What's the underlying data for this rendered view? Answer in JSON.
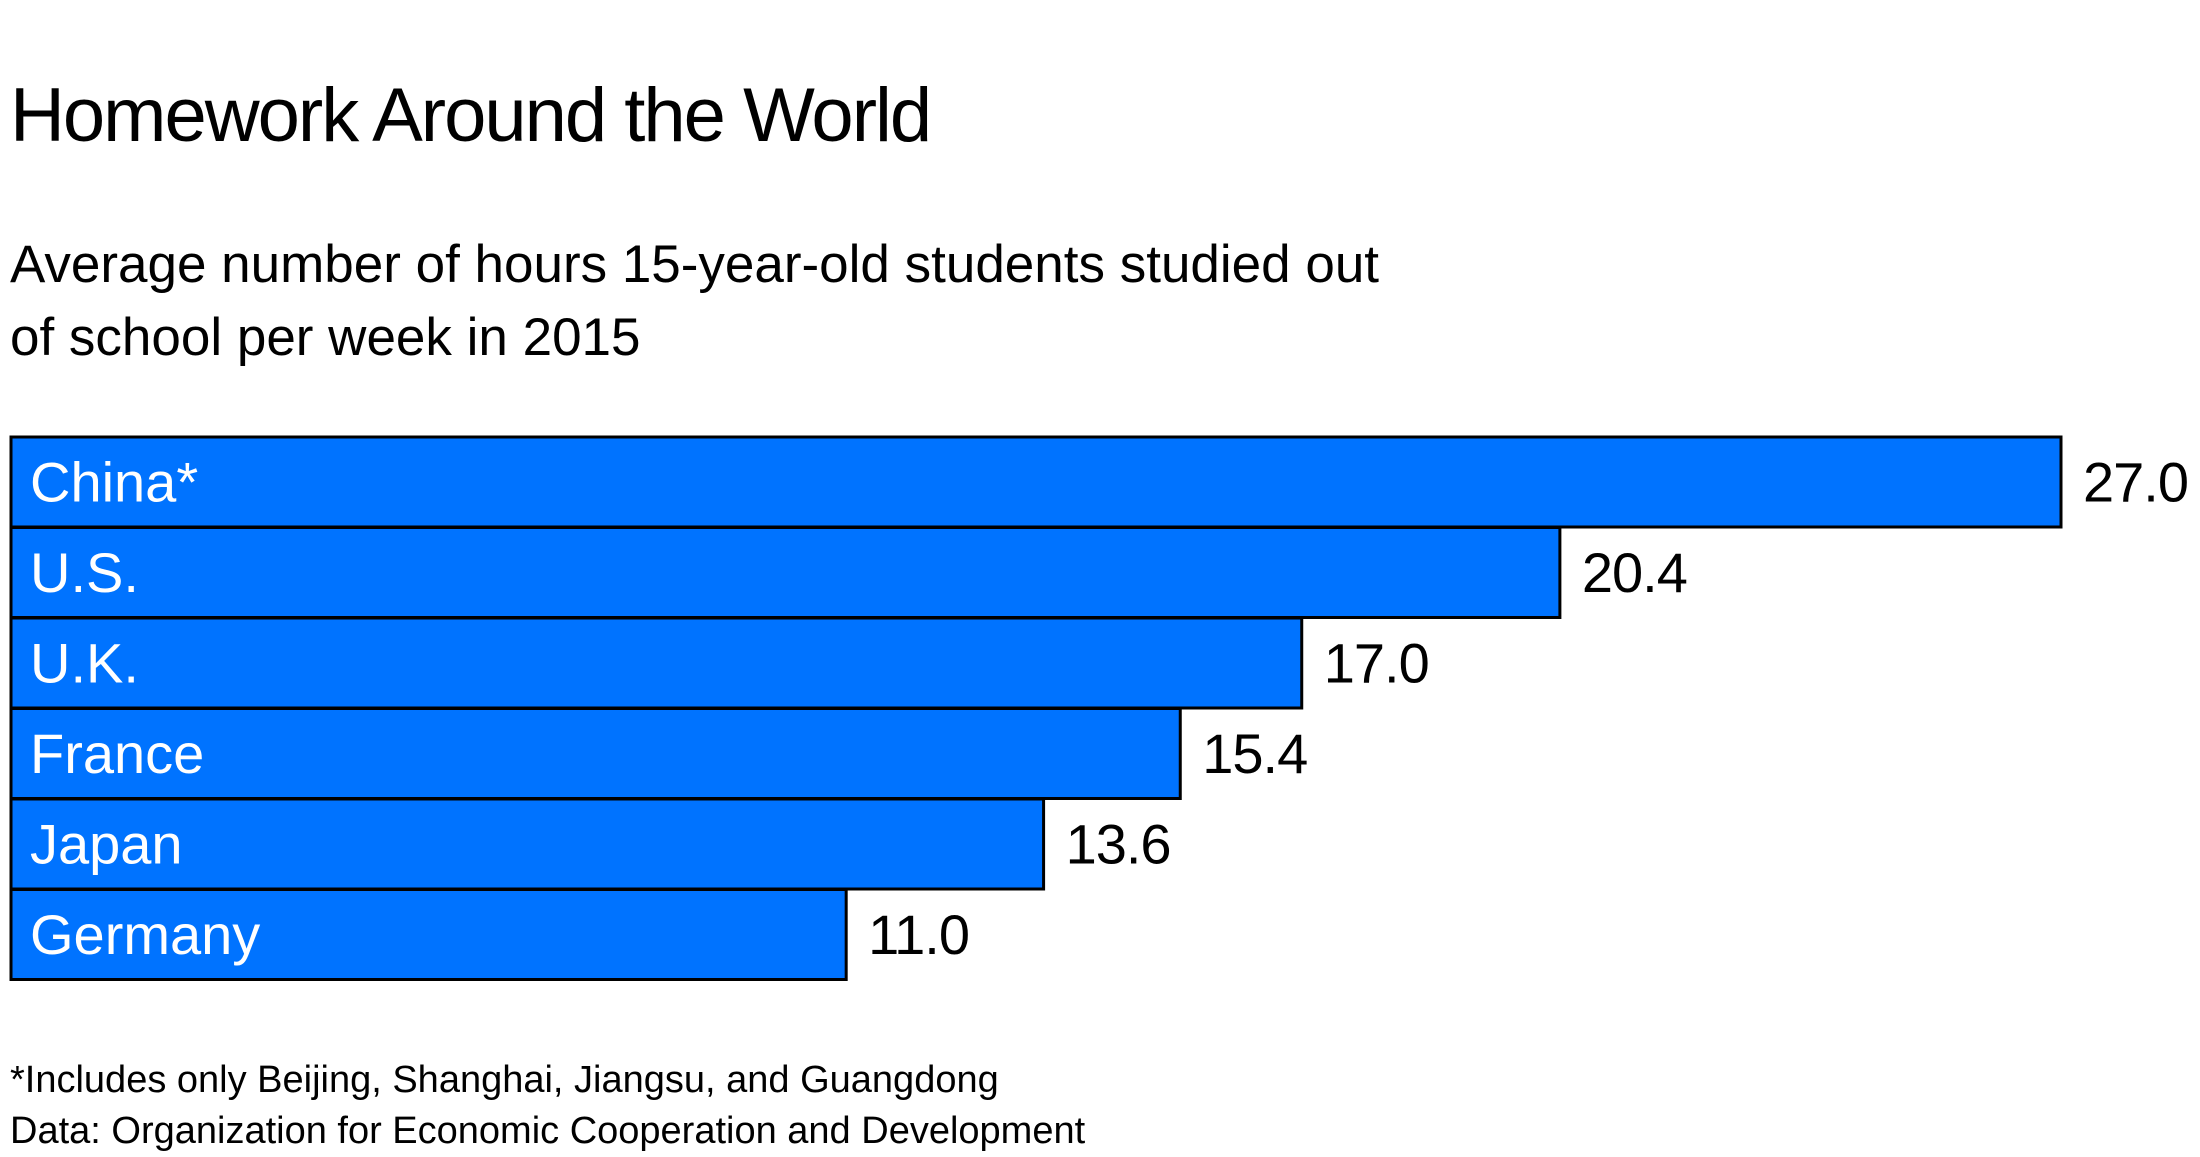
{
  "chart_data": {
    "type": "bar",
    "orientation": "horizontal",
    "title": "Homework Around the World",
    "subtitle": "Average number of hours 15-year-old students studied out of school per week in 2015",
    "categories": [
      "China*",
      "U.S.",
      "U.K.",
      "France",
      "Japan",
      "Germany"
    ],
    "values": [
      27.0,
      20.4,
      17.0,
      15.4,
      13.6,
      11.0
    ],
    "value_labels": [
      "27.0",
      "20.4",
      "17.0",
      "15.4",
      "13.6",
      "11.0"
    ],
    "xlim": [
      0,
      27.0
    ],
    "grid": false,
    "legend": "none",
    "bar_color": "#0073FF",
    "bar_border_color": "#000000",
    "footnote": "*Includes only Beijing, Shanghai, Jiangsu, and Guangdong",
    "source": "Data: Organization for Economic Cooperation and Development"
  }
}
